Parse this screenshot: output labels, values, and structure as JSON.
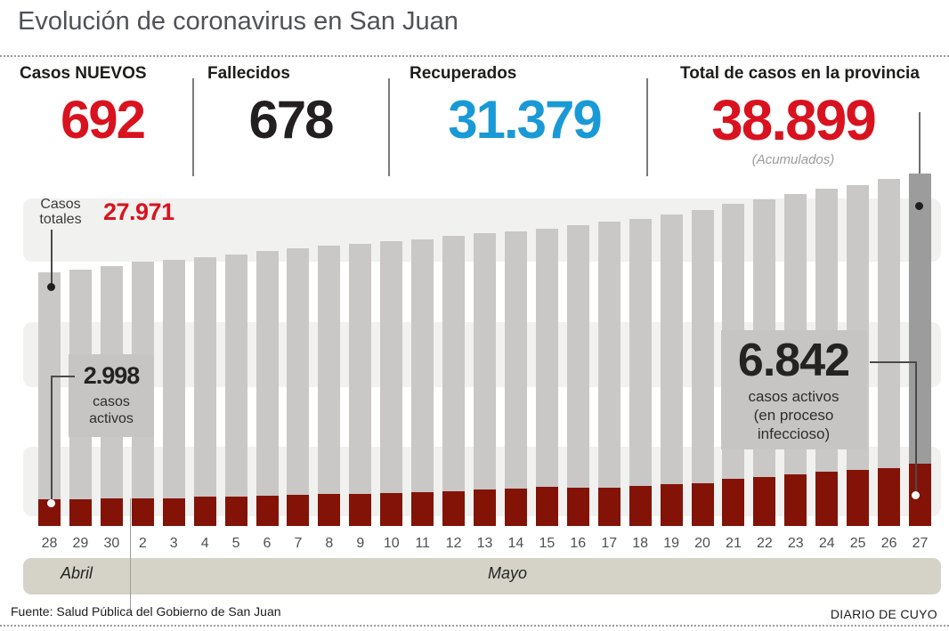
{
  "header": {
    "title": "Evolución de coronavirus en San Juan"
  },
  "stats": {
    "blocks": [
      {
        "label": "Casos NUEVOS",
        "value": "692"
      },
      {
        "label": "Fallecidos",
        "value": "678"
      },
      {
        "label": "Recuperados",
        "value": "31.379"
      },
      {
        "label": "Total de casos en la provincia",
        "value": "38.899",
        "note": "(Acumulados)"
      }
    ]
  },
  "chart": {
    "totals_label": {
      "line1": "Casos",
      "line2": "totales"
    },
    "totals_value": "27.971",
    "active_first": {
      "value": "2.998",
      "line1": "casos",
      "line2": "activos"
    },
    "active_last": {
      "value": "6.842",
      "line1": "casos activos",
      "line2": "(en proceso",
      "line3": "infeccioso)"
    }
  },
  "chart_data": {
    "type": "bar",
    "title": "Evolución de coronavirus en San Juan",
    "categories": [
      "28",
      "29",
      "30",
      "2",
      "3",
      "4",
      "5",
      "6",
      "7",
      "8",
      "9",
      "10",
      "11",
      "12",
      "13",
      "14",
      "15",
      "16",
      "17",
      "18",
      "19",
      "20",
      "21",
      "22",
      "23",
      "24",
      "25",
      "26",
      "27"
    ],
    "months": [
      {
        "label": "Abril",
        "days": 3
      },
      {
        "label": "Mayo",
        "days": 26
      }
    ],
    "series": [
      {
        "name": "Casos totales (acumulados)",
        "color": "#c9c8c6",
        "values": [
          27971,
          28270,
          28690,
          29120,
          29380,
          29670,
          29970,
          30300,
          30620,
          30920,
          31120,
          31410,
          31640,
          32000,
          32290,
          32490,
          32800,
          33180,
          33550,
          33860,
          34310,
          34820,
          35490,
          36000,
          36620,
          37230,
          37600,
          38320,
          38899
        ]
      },
      {
        "name": "Casos activos (en proceso infeccioso)",
        "color": "#831307",
        "values": [
          2998,
          2970,
          2990,
          2990,
          3040,
          3200,
          3270,
          3340,
          3470,
          3530,
          3530,
          3630,
          3730,
          3870,
          4000,
          4130,
          4270,
          4250,
          4250,
          4450,
          4580,
          4740,
          5170,
          5430,
          5660,
          5990,
          6150,
          6410,
          6842
        ]
      }
    ],
    "labeled_points": {
      "first_total": 27971,
      "last_total": 38899,
      "first_active": 2998,
      "last_active": 6842
    },
    "highlight_last_bar_color": "#9c9c9c",
    "ylim": [
      0,
      40000
    ],
    "grid": "striped-bands",
    "legend_position": "none"
  },
  "colors": {
    "accent_red": "#d9121f",
    "accent_blue": "#199ad6",
    "value_black": "#231f20",
    "bar_gray": "#c9c8c6",
    "bar_gray_highlight": "#9c9c9c",
    "bar_red": "#831307",
    "band_gray": "#f1f1ef",
    "month_band": "#d5d3c8"
  },
  "footer": {
    "source": "Fuente: Salud Pública del Gobierno de San Juan",
    "credit": "DIARIO DE CUYO"
  }
}
